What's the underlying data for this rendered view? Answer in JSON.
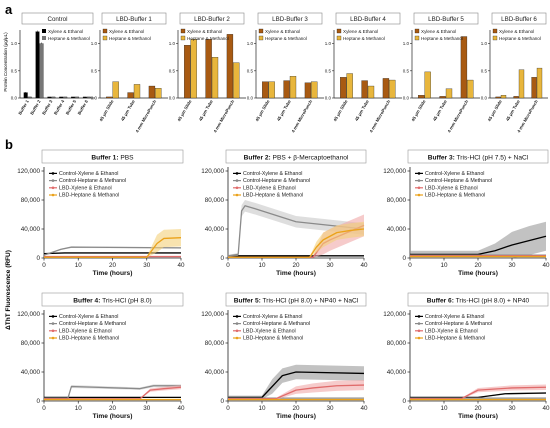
{
  "panel_labels": [
    "a",
    "b"
  ],
  "colors": {
    "xylene_ethanol": "#a85a12",
    "heptane_methanol": "#e8b63c",
    "control_xylene": "#000000",
    "control_heptane": "#8a8a8a",
    "lbd_xylene": "#e06b6b",
    "lbd_heptane": "#eba21a",
    "axis": "#222222"
  },
  "chart_data": [
    {
      "type": "bar",
      "panel": "a",
      "ylabel": "Protein Concentration (μg/μL)",
      "ylim": [
        0,
        1.25
      ],
      "yticks": [
        0.0,
        0.5,
        1.0
      ],
      "legend": [
        "Xylene & Ethanol",
        "Heptane & Methanol"
      ],
      "groups": [
        {
          "title": "Control",
          "categories": [
            "Buffer 1",
            "Buffer 2",
            "Buffer 3",
            "Buffer 4",
            "Buffer 5",
            "Buffer 6"
          ],
          "series": [
            {
              "name": "Xylene & Ethanol",
              "values": [
                0.1,
                1.22,
                0.02,
                0.02,
                0.02,
                0.02
              ],
              "errors": [
                0.01,
                0.02,
                0,
                0,
                0,
                0
              ]
            },
            {
              "name": "Heptane & Methanol",
              "values": [
                0.02,
                1.0,
                0.02,
                0.02,
                0.02,
                0.02
              ],
              "errors": [
                0,
                0.02,
                0,
                0,
                0,
                0
              ]
            }
          ]
        },
        {
          "title": "LBD-Buffer 1",
          "categories": [
            "45 μm Slide",
            "45 μm Tube",
            "4 mm MicroPunch"
          ],
          "series": [
            {
              "name": "Xylene & Ethanol",
              "values": [
                0.02,
                0.1,
                0.22
              ]
            },
            {
              "name": "Heptane & Methanol",
              "values": [
                0.3,
                0.25,
                0.18
              ]
            }
          ]
        },
        {
          "title": "LBD-Buffer 2",
          "categories": [
            "45 μm Slide",
            "45 μm Tube",
            "4 mm MicroPunch"
          ],
          "series": [
            {
              "name": "Xylene & Ethanol",
              "values": [
                0.97,
                1.08,
                1.17
              ]
            },
            {
              "name": "Heptane & Methanol",
              "values": [
                1.08,
                0.75,
                0.65
              ]
            }
          ]
        },
        {
          "title": "LBD-Buffer 3",
          "categories": [
            "45 μm Slide",
            "45 μm Tube",
            "4 mm MicroPunch"
          ],
          "series": [
            {
              "name": "Xylene & Ethanol",
              "values": [
                0.3,
                0.32,
                0.28
              ]
            },
            {
              "name": "Heptane & Methanol",
              "values": [
                0.3,
                0.4,
                0.3
              ]
            }
          ]
        },
        {
          "title": "LBD-Buffer 4",
          "categories": [
            "45 μm Slide",
            "45 μm Tube",
            "4 mm MicroPunch"
          ],
          "series": [
            {
              "name": "Xylene & Ethanol",
              "values": [
                0.38,
                0.32,
                0.36
              ]
            },
            {
              "name": "Heptane & Methanol",
              "values": [
                0.45,
                0.22,
                0.33
              ]
            }
          ]
        },
        {
          "title": "LBD-Buffer 5",
          "categories": [
            "45 μm Slide",
            "45 μm Tube",
            "4 mm MicroPunch"
          ],
          "series": [
            {
              "name": "Xylene & Ethanol",
              "values": [
                0.05,
                0.03,
                1.13
              ]
            },
            {
              "name": "Heptane & Methanol",
              "values": [
                0.48,
                0.17,
                0.33
              ]
            }
          ]
        },
        {
          "title": "LBD-Buffer 6",
          "categories": [
            "45 μm Slide",
            "45 μm Tube",
            "4 mm MicroPunch"
          ],
          "series": [
            {
              "name": "Xylene & Ethanol",
              "values": [
                0.02,
                0.03,
                0.38
              ]
            },
            {
              "name": "Heptane & Methanol",
              "values": [
                0.05,
                0.52,
                0.55
              ]
            }
          ]
        }
      ]
    },
    {
      "type": "line",
      "panel": "b",
      "xlabel": "Time (hours)",
      "ylabel": "ΔThT Fluorescence (RFU)",
      "xlim": [
        0,
        40
      ],
      "xticks": [
        0,
        10,
        20,
        30,
        40
      ],
      "ylim": [
        0,
        120000
      ],
      "yticks": [
        "0",
        "40,000",
        "80,000",
        "120,000"
      ],
      "series_names": [
        "Control-Xylene & Ethanol",
        "Control-Heptane & Methanol",
        "LBD-Xylene & Ethanol",
        "LBD-Heptane & Methanol"
      ],
      "panels": [
        {
          "title_bold": "Buffer 1:",
          "title_rest": " PBS",
          "legend": true,
          "series": [
            {
              "name": "Control-Xylene & Ethanol",
              "points": [
                [
                  0,
                  6000
                ],
                [
                  6,
                  7000
                ],
                [
                  40,
                  7000
                ]
              ],
              "band": 0
            },
            {
              "name": "Control-Heptane & Methanol",
              "points": [
                [
                  0,
                  4000
                ],
                [
                  5,
                  12000
                ],
                [
                  8,
                  15000
                ],
                [
                  40,
                  14000
                ]
              ],
              "band": 1500
            },
            {
              "name": "LBD-Xylene & Ethanol",
              "points": [
                [
                  0,
                  2000
                ],
                [
                  40,
                  2000
                ]
              ],
              "band": 0
            },
            {
              "name": "LBD-Heptane & Methanol",
              "points": [
                [
                  0,
                  1000
                ],
                [
                  30,
                  1000
                ],
                [
                  33,
                  20000
                ],
                [
                  35,
                  27000
                ],
                [
                  40,
                  28000
                ]
              ],
              "band": 12000
            }
          ]
        },
        {
          "title_bold": "Buffer 2:",
          "title_rest": " PBS + β-Mercaptoethanol",
          "legend": true,
          "series": [
            {
              "name": "Control-Xylene & Ethanol",
              "points": [
                [
                  0,
                  3000
                ],
                [
                  40,
                  3000
                ]
              ],
              "band": 0
            },
            {
              "name": "Control-Heptane & Methanol",
              "points": [
                [
                  0,
                  3000
                ],
                [
                  3,
                  5000
                ],
                [
                  4,
                  65000
                ],
                [
                  5,
                  72000
                ],
                [
                  8,
                  68000
                ],
                [
                  20,
                  50000
                ],
                [
                  30,
                  45000
                ],
                [
                  40,
                  40000
                ]
              ],
              "band": 8000
            },
            {
              "name": "LBD-Xylene & Ethanol",
              "points": [
                [
                  0,
                  1000
                ],
                [
                  25,
                  1000
                ],
                [
                  28,
                  20000
                ],
                [
                  30,
                  25000
                ],
                [
                  35,
                  35000
                ],
                [
                  40,
                  45000
                ]
              ],
              "band": 15000
            },
            {
              "name": "LBD-Heptane & Methanol",
              "points": [
                [
                  0,
                  1000
                ],
                [
                  24,
                  1000
                ],
                [
                  26,
                  15000
                ],
                [
                  28,
                  25000
                ],
                [
                  32,
                  35000
                ],
                [
                  36,
                  38000
                ],
                [
                  40,
                  40000
                ]
              ],
              "band": 10000
            }
          ]
        },
        {
          "title_bold": "Buffer 3:",
          "title_rest": " Tris-HCl (pH 7.5) + NaCl",
          "legend": true,
          "series": [
            {
              "name": "Control-Xylene & Ethanol",
              "points": [
                [
                  0,
                  5000
                ],
                [
                  20,
                  5000
                ],
                [
                  25,
                  10000
                ],
                [
                  30,
                  18000
                ],
                [
                  35,
                  24000
                ],
                [
                  40,
                  30000
                ]
              ],
              "band": 20000
            },
            {
              "name": "Control-Heptane & Methanol",
              "points": [
                [
                  0,
                  4000
                ],
                [
                  40,
                  4000
                ]
              ],
              "band": 0
            },
            {
              "name": "LBD-Xylene & Ethanol",
              "points": [
                [
                  0,
                  3000
                ],
                [
                  40,
                  3000
                ]
              ],
              "band": 0
            },
            {
              "name": "LBD-Heptane & Methanol",
              "points": [
                [
                  0,
                  2000
                ],
                [
                  40,
                  2000
                ]
              ],
              "band": 0
            }
          ]
        },
        {
          "title_bold": "Buffer 4:",
          "title_rest": " Tris-HCl (pH 8.0)",
          "legend": true,
          "series": [
            {
              "name": "Control-Xylene & Ethanol",
              "points": [
                [
                  0,
                  5000
                ],
                [
                  40,
                  5000
                ]
              ],
              "band": 0
            },
            {
              "name": "Control-Heptane & Methanol",
              "points": [
                [
                  0,
                  4000
                ],
                [
                  7,
                  4000
                ],
                [
                  8,
                  20000
                ],
                [
                  15,
                  19000
                ],
                [
                  28,
                  17000
                ],
                [
                  32,
                  21000
                ],
                [
                  40,
                  21000
                ]
              ],
              "band": 2000
            },
            {
              "name": "LBD-Xylene & Ethanol",
              "points": [
                [
                  0,
                  3000
                ],
                [
                  28,
                  3000
                ],
                [
                  31,
                  15000
                ],
                [
                  35,
                  17000
                ],
                [
                  40,
                  19000
                ]
              ],
              "band": 3000
            },
            {
              "name": "LBD-Heptane & Methanol",
              "points": [
                [
                  0,
                  2000
                ],
                [
                  40,
                  2000
                ]
              ],
              "band": 0
            }
          ]
        },
        {
          "title_bold": "Buffer 5:",
          "title_rest": " Tris-HCl (pH 8.0) + NP40 + NaCl",
          "legend": true,
          "series": [
            {
              "name": "Control-Xylene & Ethanol",
              "points": [
                [
                  0,
                  5000
                ],
                [
                  10,
                  5000
                ],
                [
                  13,
                  20000
                ],
                [
                  16,
                  35000
                ],
                [
                  20,
                  40000
                ],
                [
                  40,
                  38000
                ]
              ],
              "band": 10000
            },
            {
              "name": "Control-Heptane & Methanol",
              "points": [
                [
                  0,
                  4000
                ],
                [
                  40,
                  4000
                ]
              ],
              "band": 0
            },
            {
              "name": "LBD-Xylene & Ethanol",
              "points": [
                [
                  0,
                  3000
                ],
                [
                  14,
                  3000
                ],
                [
                  20,
                  15000
                ],
                [
                  25,
                  18000
                ],
                [
                  32,
                  21000
                ],
                [
                  40,
                  22000
                ]
              ],
              "band": 7000
            },
            {
              "name": "LBD-Heptane & Methanol",
              "points": [
                [
                  0,
                  2000
                ],
                [
                  40,
                  2000
                ]
              ],
              "band": 0
            }
          ]
        },
        {
          "title_bold": "Buffer 6:",
          "title_rest": " Tris-HCl (pH 8.0) + NP40",
          "legend": true,
          "series": [
            {
              "name": "Control-Xylene & Ethanol",
              "points": [
                [
                  0,
                  5000
                ],
                [
                  20,
                  5000
                ],
                [
                  28,
                  10000
                ],
                [
                  40,
                  11000
                ]
              ],
              "band": 2000
            },
            {
              "name": "Control-Heptane & Methanol",
              "points": [
                [
                  0,
                  4000
                ],
                [
                  40,
                  4000
                ]
              ],
              "band": 0
            },
            {
              "name": "LBD-Xylene & Ethanol",
              "points": [
                [
                  0,
                  3000
                ],
                [
                  15,
                  3000
                ],
                [
                  20,
                  15000
                ],
                [
                  30,
                  18000
                ],
                [
                  40,
                  19000
                ]
              ],
              "band": 4000
            },
            {
              "name": "LBD-Heptane & Methanol",
              "points": [
                [
                  0,
                  2000
                ],
                [
                  40,
                  2000
                ]
              ],
              "band": 0
            }
          ]
        }
      ]
    }
  ]
}
